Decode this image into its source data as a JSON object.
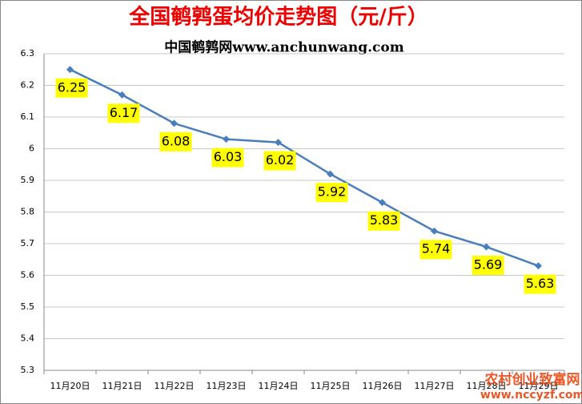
{
  "chart_data": {
    "type": "line",
    "title": "全国鹌鹑蛋均价走势图（元/斤）",
    "subtitle": "中国鹌鹑网www.anchunwang.com",
    "categories": [
      "11月20日",
      "11月21日",
      "11月22日",
      "11月23日",
      "11月24日",
      "11月25日",
      "11月26日",
      "11月27日",
      "11月28日",
      "11月29日"
    ],
    "series": [
      {
        "name": "均价",
        "color": "#4a7ebb",
        "values": [
          6.25,
          6.17,
          6.08,
          6.03,
          6.02,
          5.92,
          5.83,
          5.74,
          5.69,
          5.63
        ]
      }
    ],
    "ylim": [
      5.3,
      6.3
    ],
    "yticks": [
      5.3,
      5.4,
      5.5,
      5.6,
      5.7,
      5.8,
      5.9,
      6,
      6.1,
      6.2,
      6.3
    ],
    "grid": true,
    "label_color": "#ffff00",
    "annotations": [
      "农村创业致富网",
      "www.nccyzf.com"
    ]
  }
}
